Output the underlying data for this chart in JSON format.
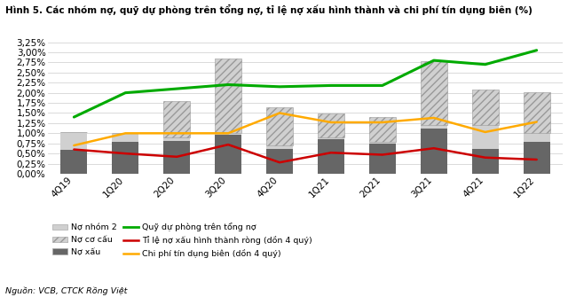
{
  "title": "Hình 5. Các nhóm nợ, quỹ dự phòng trên tổng nợ, tỉ lệ nợ xấu hình thành và chi phí tín dụng biên (%)",
  "source": "Nguồn: VCB, CTCK Rồng Việt",
  "categories": [
    "4Q19",
    "1Q20",
    "2Q20",
    "3Q20",
    "4Q20",
    "1Q21",
    "2Q21",
    "3Q21",
    "4Q21",
    "1Q22"
  ],
  "no_xau": [
    0.6,
    0.78,
    0.82,
    0.97,
    0.62,
    0.86,
    0.74,
    1.12,
    0.62,
    0.78
  ],
  "no_nhom2": [
    0.42,
    0.22,
    0.08,
    0.03,
    0.08,
    0.04,
    0.04,
    0.08,
    0.58,
    0.22
  ],
  "no_co_cau": [
    0.0,
    0.0,
    0.9,
    1.85,
    0.95,
    0.58,
    0.62,
    1.58,
    0.88,
    1.02
  ],
  "quy_du_phong": [
    1.4,
    2.0,
    2.1,
    2.2,
    2.15,
    2.18,
    2.18,
    2.8,
    2.7,
    3.05
  ],
  "ti_le_no_xau": [
    0.6,
    0.5,
    0.42,
    0.72,
    0.28,
    0.52,
    0.47,
    0.63,
    0.4,
    0.35
  ],
  "chi_phi_tin_dung": [
    0.7,
    1.0,
    1.0,
    1.0,
    1.5,
    1.27,
    1.27,
    1.38,
    1.03,
    1.28
  ],
  "color_no_nhom2": "#d0d0d0",
  "color_no_xau": "#666666",
  "color_quy_du_phong": "#00aa00",
  "color_ti_le_no_xau": "#cc0000",
  "color_chi_phi_tin_dung": "#ffaa00",
  "ylim": [
    0.0,
    3.375
  ],
  "yticks": [
    0.0,
    0.25,
    0.5,
    0.75,
    1.0,
    1.25,
    1.5,
    1.75,
    2.0,
    2.25,
    2.5,
    2.75,
    3.0,
    3.25
  ]
}
